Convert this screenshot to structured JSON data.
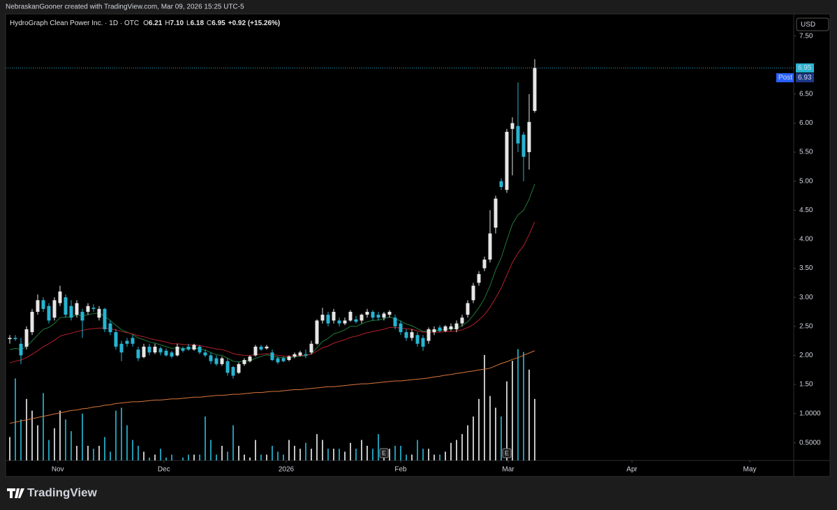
{
  "header": {
    "caption": "NebraskanGooner created with TradingView.com, Mar 09, 2026 15:25 UTC-5"
  },
  "footer": {
    "brand": "TradingView"
  },
  "chart_data": {
    "type": "candlestick",
    "legend": {
      "symbol": "HydroGraph Clean Power Inc. · 1D · OTC",
      "items": [
        {
          "key": "O",
          "value": "6.21"
        },
        {
          "key": "H",
          "value": "7.10"
        },
        {
          "key": "L",
          "value": "6.18"
        },
        {
          "key": "C",
          "value": "6.95"
        }
      ],
      "change": "+0.92 (+15.26%)"
    },
    "currency": "USD",
    "up_color": "#e6e6e6",
    "down_color": "#26b4d2",
    "ohlc": [
      [
        2.28,
        2.35,
        2.2,
        2.3
      ],
      [
        2.3,
        2.35,
        2.25,
        2.28
      ],
      [
        2.2,
        2.3,
        1.85,
        2.0
      ],
      [
        2.15,
        2.5,
        2.1,
        2.45
      ],
      [
        2.4,
        2.8,
        2.35,
        2.75
      ],
      [
        2.75,
        3.05,
        2.7,
        2.95
      ],
      [
        2.95,
        3.0,
        2.75,
        2.8
      ],
      [
        2.85,
        2.9,
        2.55,
        2.6
      ],
      [
        2.65,
        3.0,
        2.6,
        2.95
      ],
      [
        2.9,
        3.2,
        2.85,
        3.1
      ],
      [
        3.0,
        3.05,
        2.65,
        2.7
      ],
      [
        2.85,
        2.95,
        2.6,
        2.65
      ],
      [
        2.7,
        2.95,
        2.65,
        2.9
      ],
      [
        2.75,
        2.8,
        2.3,
        2.6
      ],
      [
        2.75,
        2.9,
        2.7,
        2.85
      ],
      [
        2.82,
        2.88,
        2.75,
        2.8
      ],
      [
        2.65,
        2.85,
        2.6,
        2.8
      ],
      [
        2.8,
        2.82,
        2.4,
        2.45
      ],
      [
        2.55,
        2.6,
        2.35,
        2.4
      ],
      [
        2.4,
        2.45,
        2.1,
        2.15
      ],
      [
        2.2,
        2.25,
        1.9,
        2.05
      ],
      [
        2.25,
        2.3,
        2.15,
        2.2
      ],
      [
        2.3,
        2.35,
        2.15,
        2.2
      ],
      [
        2.1,
        2.15,
        1.9,
        1.95
      ],
      [
        1.97,
        2.2,
        1.95,
        2.15
      ],
      [
        2.15,
        2.2,
        2.0,
        2.05
      ],
      [
        2.05,
        2.2,
        2.02,
        2.15
      ],
      [
        2.12,
        2.15,
        2.0,
        2.05
      ],
      [
        2.08,
        2.12,
        1.98,
        2.0
      ],
      [
        2.05,
        2.08,
        1.95,
        1.98
      ],
      [
        2.0,
        2.2,
        1.98,
        2.15
      ],
      [
        2.12,
        2.15,
        2.05,
        2.08
      ],
      [
        2.15,
        2.2,
        2.08,
        2.1
      ],
      [
        2.1,
        2.2,
        2.08,
        2.18
      ],
      [
        2.15,
        2.18,
        2.02,
        2.05
      ],
      [
        2.05,
        2.1,
        1.97,
        2.0
      ],
      [
        2.0,
        2.05,
        1.85,
        1.9
      ],
      [
        1.95,
        2.0,
        1.82,
        1.85
      ],
      [
        1.85,
        1.98,
        1.82,
        1.95
      ],
      [
        1.9,
        1.95,
        1.65,
        1.7
      ],
      [
        1.8,
        1.82,
        1.6,
        1.65
      ],
      [
        1.7,
        1.88,
        1.68,
        1.85
      ],
      [
        1.85,
        1.95,
        1.82,
        1.92
      ],
      [
        1.9,
        2.0,
        1.88,
        1.98
      ],
      [
        2.0,
        2.18,
        1.98,
        2.15
      ],
      [
        2.15,
        2.18,
        2.08,
        2.1
      ],
      [
        2.12,
        2.18,
        2.1,
        2.15
      ],
      [
        2.05,
        2.1,
        1.9,
        1.92
      ],
      [
        1.95,
        1.98,
        1.85,
        1.88
      ],
      [
        1.95,
        1.98,
        1.88,
        1.9
      ],
      [
        1.92,
        2.0,
        1.9,
        1.98
      ],
      [
        1.98,
        2.05,
        1.95,
        2.02
      ],
      [
        2.0,
        2.08,
        1.98,
        2.05
      ],
      [
        2.02,
        2.1,
        1.95,
        2.0
      ],
      [
        2.05,
        2.25,
        2.02,
        2.2
      ],
      [
        2.2,
        2.62,
        2.18,
        2.6
      ],
      [
        2.6,
        2.82,
        2.55,
        2.7
      ],
      [
        2.7,
        2.75,
        2.5,
        2.55
      ],
      [
        2.6,
        2.8,
        2.55,
        2.75
      ],
      [
        2.6,
        2.65,
        2.5,
        2.55
      ],
      [
        2.55,
        2.65,
        2.52,
        2.6
      ],
      [
        2.6,
        2.78,
        2.58,
        2.75
      ],
      [
        2.62,
        2.68,
        2.55,
        2.58
      ],
      [
        2.6,
        2.72,
        2.55,
        2.7
      ],
      [
        2.7,
        2.8,
        2.65,
        2.75
      ],
      [
        2.75,
        2.78,
        2.6,
        2.65
      ],
      [
        2.7,
        2.75,
        2.6,
        2.65
      ],
      [
        2.65,
        2.75,
        2.6,
        2.72
      ],
      [
        2.7,
        2.78,
        2.65,
        2.75
      ],
      [
        2.65,
        2.7,
        2.45,
        2.5
      ],
      [
        2.55,
        2.6,
        2.35,
        2.4
      ],
      [
        2.4,
        2.45,
        2.25,
        2.3
      ],
      [
        2.3,
        2.45,
        2.25,
        2.4
      ],
      [
        2.35,
        2.4,
        2.15,
        2.2
      ],
      [
        2.3,
        2.35,
        2.08,
        2.15
      ],
      [
        2.25,
        2.48,
        2.2,
        2.45
      ],
      [
        2.4,
        2.5,
        2.35,
        2.45
      ],
      [
        2.48,
        2.52,
        2.4,
        2.42
      ],
      [
        2.42,
        2.52,
        2.4,
        2.5
      ],
      [
        2.45,
        2.55,
        2.42,
        2.5
      ],
      [
        2.45,
        2.6,
        2.4,
        2.55
      ],
      [
        2.55,
        2.7,
        2.5,
        2.65
      ],
      [
        2.7,
        2.95,
        2.65,
        2.9
      ],
      [
        2.95,
        3.25,
        2.9,
        3.2
      ],
      [
        3.25,
        3.45,
        3.2,
        3.4
      ],
      [
        3.5,
        3.7,
        3.45,
        3.65
      ],
      [
        3.65,
        4.5,
        3.6,
        4.1
      ],
      [
        4.2,
        4.75,
        4.1,
        4.7
      ],
      [
        5.0,
        5.05,
        4.85,
        4.9
      ],
      [
        4.85,
        5.9,
        4.8,
        5.85
      ],
      [
        5.9,
        6.1,
        5.1,
        6.0
      ],
      [
        5.95,
        6.7,
        5.5,
        5.65
      ],
      [
        5.8,
        5.85,
        5.0,
        5.42
      ],
      [
        5.5,
        6.5,
        5.2,
        6.02
      ],
      [
        6.21,
        7.1,
        6.18,
        6.95
      ]
    ],
    "volume": [
      0.6,
      1.6,
      0.9,
      1.25,
      1.05,
      0.8,
      1.35,
      0.55,
      0.75,
      1.05,
      0.9,
      0.7,
      0.45,
      1.0,
      0.45,
      0.4,
      0.45,
      0.6,
      0.35,
      1.05,
      1.1,
      0.8,
      0.55,
      0.45,
      0.35,
      0.25,
      0.3,
      0.4,
      0.25,
      0.3,
      0.2,
      0.25,
      0.3,
      0.3,
      0.3,
      0.95,
      0.55,
      0.3,
      0.45,
      0.35,
      0.8,
      0.45,
      0.3,
      0.25,
      0.55,
      0.3,
      0.3,
      0.45,
      0.35,
      0.3,
      0.55,
      0.45,
      0.4,
      0.5,
      0.4,
      0.65,
      0.55,
      0.4,
      0.4,
      0.4,
      0.35,
      0.5,
      0.4,
      0.55,
      0.45,
      0.4,
      0.65,
      0.3,
      0.4,
      0.45,
      0.45,
      0.3,
      0.3,
      0.55,
      0.4,
      0.4,
      0.3,
      0.3,
      0.35,
      0.5,
      0.55,
      0.65,
      0.8,
      0.95,
      1.25,
      2.0,
      1.3,
      1.1,
      0.95,
      1.55,
      1.9,
      2.1,
      2.05,
      1.75,
      1.25
    ],
    "overlays": [
      {
        "color": "#1f7a3a",
        "values": [
          2.1,
          2.12,
          2.1,
          2.15,
          2.25,
          2.35,
          2.45,
          2.48,
          2.55,
          2.65,
          2.66,
          2.66,
          2.7,
          2.68,
          2.7,
          2.72,
          2.73,
          2.67,
          2.6,
          2.52,
          2.44,
          2.4,
          2.36,
          2.3,
          2.27,
          2.23,
          2.21,
          2.18,
          2.15,
          2.12,
          2.13,
          2.12,
          2.12,
          2.13,
          2.11,
          2.09,
          2.05,
          2.01,
          2.0,
          1.95,
          1.9,
          1.89,
          1.9,
          1.91,
          1.95,
          1.98,
          2.01,
          1.99,
          1.97,
          1.96,
          1.96,
          1.97,
          1.99,
          1.99,
          2.03,
          2.13,
          2.24,
          2.29,
          2.37,
          2.4,
          2.44,
          2.5,
          2.5,
          2.54,
          2.58,
          2.6,
          2.61,
          2.63,
          2.66,
          2.63,
          2.59,
          2.54,
          2.51,
          2.46,
          2.41,
          2.42,
          2.43,
          2.43,
          2.45,
          2.46,
          2.47,
          2.51,
          2.58,
          2.69,
          2.82,
          2.98,
          3.2,
          3.47,
          3.68,
          3.98,
          4.26,
          4.42,
          4.5,
          4.69,
          4.95
        ]
      },
      {
        "color": "#b3202a",
        "values": [
          1.87,
          1.9,
          1.92,
          1.96,
          2.02,
          2.08,
          2.15,
          2.2,
          2.26,
          2.33,
          2.36,
          2.38,
          2.41,
          2.43,
          2.45,
          2.46,
          2.47,
          2.47,
          2.46,
          2.44,
          2.41,
          2.39,
          2.37,
          2.34,
          2.32,
          2.29,
          2.27,
          2.25,
          2.23,
          2.2,
          2.2,
          2.19,
          2.18,
          2.18,
          2.17,
          2.15,
          2.13,
          2.11,
          2.1,
          2.07,
          2.03,
          2.01,
          2.0,
          2.0,
          2.01,
          2.02,
          2.03,
          2.02,
          2.0,
          1.99,
          1.99,
          1.99,
          2.0,
          2.0,
          2.02,
          2.07,
          2.13,
          2.16,
          2.21,
          2.24,
          2.27,
          2.31,
          2.33,
          2.36,
          2.39,
          2.41,
          2.43,
          2.45,
          2.48,
          2.48,
          2.47,
          2.46,
          2.45,
          2.42,
          2.4,
          2.4,
          2.4,
          2.4,
          2.41,
          2.41,
          2.42,
          2.44,
          2.48,
          2.53,
          2.61,
          2.7,
          2.83,
          2.99,
          3.16,
          3.38,
          3.6,
          3.76,
          3.89,
          4.08,
          4.3
        ]
      },
      {
        "color": "#d9763a",
        "values": [
          0.83,
          0.85,
          0.87,
          0.89,
          0.91,
          0.93,
          0.95,
          0.97,
          0.99,
          1.01,
          1.03,
          1.05,
          1.06,
          1.08,
          1.09,
          1.11,
          1.12,
          1.14,
          1.15,
          1.17,
          1.18,
          1.19,
          1.2,
          1.2,
          1.21,
          1.22,
          1.23,
          1.23,
          1.24,
          1.25,
          1.25,
          1.26,
          1.27,
          1.28,
          1.28,
          1.29,
          1.3,
          1.31,
          1.31,
          1.32,
          1.33,
          1.33,
          1.34,
          1.35,
          1.36,
          1.36,
          1.37,
          1.38,
          1.38,
          1.39,
          1.4,
          1.41,
          1.41,
          1.42,
          1.43,
          1.44,
          1.45,
          1.46,
          1.46,
          1.47,
          1.48,
          1.49,
          1.5,
          1.51,
          1.51,
          1.52,
          1.53,
          1.54,
          1.55,
          1.56,
          1.56,
          1.57,
          1.58,
          1.59,
          1.6,
          1.61,
          1.63,
          1.64,
          1.66,
          1.67,
          1.69,
          1.7,
          1.72,
          1.73,
          1.75,
          1.76,
          1.78,
          1.82,
          1.86,
          1.89,
          1.93,
          1.96,
          2.0,
          2.04,
          2.08
        ]
      }
    ],
    "last_price": 6.95,
    "post_market": {
      "label": "Post",
      "value": 6.93
    },
    "events": [
      {
        "index": 67,
        "label": "E"
      },
      {
        "index": 89,
        "label": "E"
      }
    ],
    "xlim": [
      -0.75,
      140.375
    ],
    "xticks": [
      {
        "value": 8.6,
        "label": "Nov"
      },
      {
        "value": 27.6,
        "label": "Dec"
      },
      {
        "value": 49.5,
        "label": "2026"
      },
      {
        "value": 70,
        "label": "Feb"
      },
      {
        "value": 89.25,
        "label": "Mar"
      },
      {
        "value": 111.4,
        "label": "Apr"
      },
      {
        "value": 132.5,
        "label": "May"
      }
    ],
    "ylim": [
      0.19,
      7.88
    ],
    "yticks": [
      {
        "value": 7.5,
        "label": "7.50"
      },
      {
        "value": 6.5,
        "label": "6.50"
      },
      {
        "value": 6,
        "label": "6.00"
      },
      {
        "value": 5.5,
        "label": "5.50"
      },
      {
        "value": 5,
        "label": "5.00"
      },
      {
        "value": 4.5,
        "label": "4.50"
      },
      {
        "value": 4,
        "label": "4.00"
      },
      {
        "value": 3.5,
        "label": "3.50"
      },
      {
        "value": 3,
        "label": "3.00"
      },
      {
        "value": 2.5,
        "label": "2.50"
      },
      {
        "value": 2,
        "label": "2.00"
      },
      {
        "value": 1.5,
        "label": "1.50"
      }
    ],
    "y2lim": [
      0.2,
      2.2
    ],
    "y2ticks": [
      {
        "value": 1,
        "label": "1.0000"
      },
      {
        "value": 0.5,
        "label": "0.5000"
      }
    ],
    "grid": false
  }
}
